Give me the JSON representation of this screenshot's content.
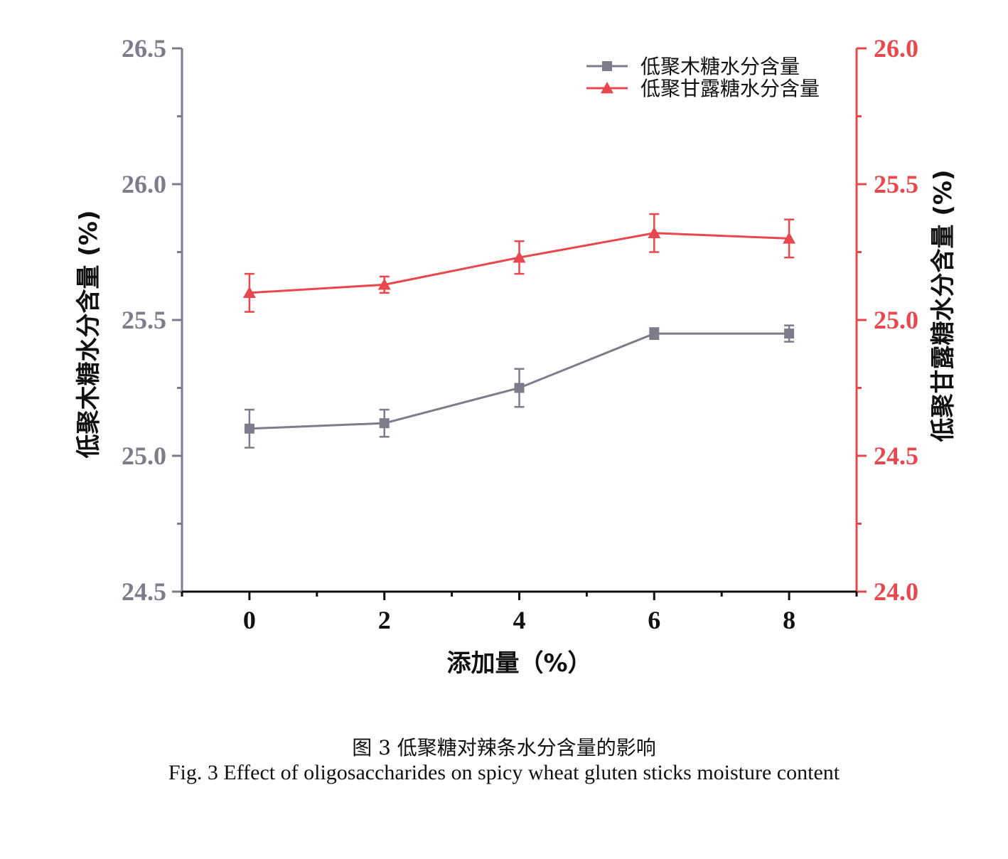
{
  "colors": {
    "series1": "#7f7b8a",
    "series2": "#e8474d",
    "text": "#111111"
  },
  "chart_data": {
    "type": "line",
    "x": [
      0,
      2,
      4,
      6,
      8
    ],
    "xlabel": "添加量（%）",
    "ylabel_left": "低聚木糖水分含量 (%)",
    "ylabel_right": "低聚甘露糖水分含量 (%)",
    "xlim": [
      -1,
      9
    ],
    "ylim_left": [
      24.5,
      26.5
    ],
    "ylim_right": [
      24.0,
      26.0
    ],
    "xticks": [
      "0",
      "2",
      "4",
      "6",
      "8"
    ],
    "yticks_left": [
      "24.5",
      "25.0",
      "25.5",
      "26.0",
      "26.5"
    ],
    "yticks_right": [
      "24.0",
      "24.5",
      "25.0",
      "25.5",
      "26.0"
    ],
    "legend_position": "top-right",
    "grid": false,
    "series": [
      {
        "name": "低聚木糖水分含量",
        "axis": "left",
        "marker": "square",
        "values": [
          25.1,
          25.12,
          25.25,
          25.45,
          25.45
        ],
        "errors": [
          0.07,
          0.05,
          0.07,
          0.02,
          0.03
        ]
      },
      {
        "name": "低聚甘露糖水分含量",
        "axis": "right",
        "marker": "triangle",
        "values": [
          25.1,
          25.13,
          25.23,
          25.32,
          25.3
        ],
        "errors": [
          0.07,
          0.03,
          0.06,
          0.07,
          0.07
        ]
      }
    ]
  },
  "caption": {
    "cn": "图 3  低聚糖对辣条水分含量的影响",
    "en": "Fig. 3 Effect of oligosaccharides on spicy wheat gluten sticks moisture content"
  }
}
